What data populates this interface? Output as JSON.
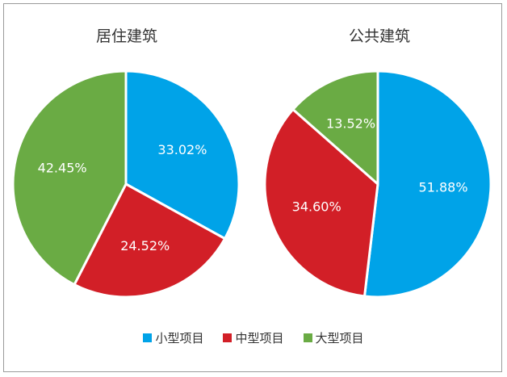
{
  "colors": {
    "small": "#00a3e8",
    "medium": "#d21f27",
    "large": "#6aab44"
  },
  "legend": [
    {
      "label": "小型项目",
      "color": "#00a3e8"
    },
    {
      "label": "中型项目",
      "color": "#d21f27"
    },
    {
      "label": "大型项目",
      "color": "#6aab44"
    }
  ],
  "chart_data": [
    {
      "type": "pie",
      "title": "居住建筑",
      "slices": [
        {
          "label": "小型项目",
          "value": 33.02,
          "display": "33.02%",
          "color": "#00a3e8"
        },
        {
          "label": "中型项目",
          "value": 24.52,
          "display": "24.52%",
          "color": "#d21f27"
        },
        {
          "label": "大型项目",
          "value": 42.45,
          "display": "42.45%",
          "color": "#6aab44"
        }
      ],
      "legend_position": "bottom"
    },
    {
      "type": "pie",
      "title": "公共建筑",
      "slices": [
        {
          "label": "小型项目",
          "value": 51.88,
          "display": "51.88%",
          "color": "#00a3e8"
        },
        {
          "label": "中型项目",
          "value": 34.6,
          "display": "34.60%",
          "color": "#d21f27"
        },
        {
          "label": "大型项目",
          "value": 13.52,
          "display": "13.52%",
          "color": "#6aab44"
        }
      ],
      "legend_position": "bottom"
    }
  ]
}
